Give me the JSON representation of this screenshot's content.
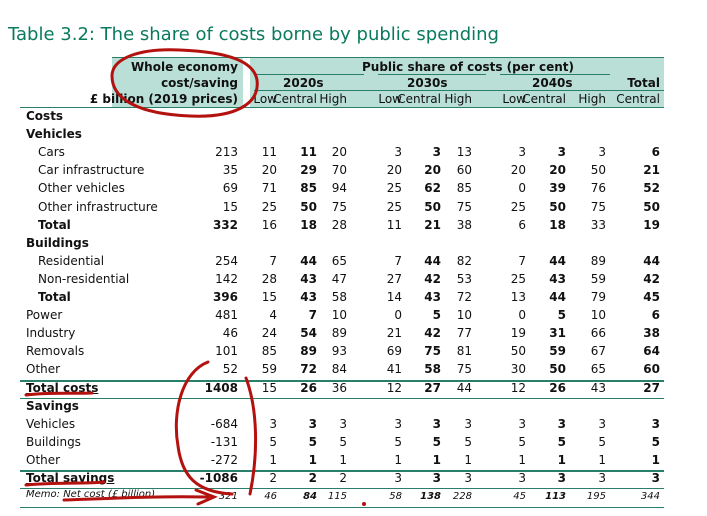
{
  "title": "Table 3.2: The share of costs borne by public spending",
  "header": {
    "whole_economy_line1": "Whole economy",
    "whole_economy_line2": "cost/saving",
    "whole_economy_line3": "£ billion (2019 prices)",
    "public_share": "Public share of costs (per cent)",
    "decades": [
      "2020s",
      "2030s",
      "2040s"
    ],
    "total_label": "Total",
    "sub": [
      "Low",
      "Central",
      "High",
      "Low",
      "Central",
      "High",
      "Low",
      "Central",
      "High"
    ],
    "total_sub": "Central"
  },
  "rows": [
    {
      "label": "Costs",
      "cells": [],
      "style": "bold",
      "indent": 0
    },
    {
      "label": "Vehicles",
      "cells": [],
      "style": "bold",
      "indent": 0
    },
    {
      "label": "Cars",
      "cells": [
        "213",
        "11",
        "11",
        "20",
        "3",
        "3",
        "13",
        "3",
        "3",
        "3",
        "6"
      ],
      "style": "normal",
      "indent": 1
    },
    {
      "label": "Car infrastructure",
      "cells": [
        "35",
        "20",
        "29",
        "70",
        "20",
        "20",
        "60",
        "20",
        "20",
        "50",
        "21"
      ],
      "style": "normal",
      "indent": 1
    },
    {
      "label": "Other vehicles",
      "cells": [
        "69",
        "71",
        "85",
        "94",
        "25",
        "62",
        "85",
        "0",
        "39",
        "76",
        "52"
      ],
      "style": "normal",
      "indent": 1
    },
    {
      "label": "Other infrastructure",
      "cells": [
        "15",
        "25",
        "50",
        "75",
        "25",
        "50",
        "75",
        "25",
        "50",
        "75",
        "50"
      ],
      "style": "normal",
      "indent": 1
    },
    {
      "label": "Total",
      "cells": [
        "332",
        "16",
        "18",
        "28",
        "11",
        "21",
        "38",
        "6",
        "18",
        "33",
        "19"
      ],
      "style": "total",
      "indent": 1
    },
    {
      "label": "Buildings",
      "cells": [],
      "style": "bold",
      "indent": 0
    },
    {
      "label": "Residential",
      "cells": [
        "254",
        "7",
        "44",
        "65",
        "7",
        "44",
        "82",
        "7",
        "44",
        "89",
        "44"
      ],
      "style": "normal",
      "indent": 1
    },
    {
      "label": "Non-residential",
      "cells": [
        "142",
        "28",
        "43",
        "47",
        "27",
        "42",
        "53",
        "25",
        "43",
        "59",
        "42"
      ],
      "style": "normal",
      "indent": 1
    },
    {
      "label": "Total",
      "cells": [
        "396",
        "15",
        "43",
        "58",
        "14",
        "43",
        "72",
        "13",
        "44",
        "79",
        "45"
      ],
      "style": "total",
      "indent": 1
    },
    {
      "label": "Power",
      "cells": [
        "481",
        "4",
        "7",
        "10",
        "0",
        "5",
        "10",
        "0",
        "5",
        "10",
        "6"
      ],
      "style": "normal",
      "indent": 0
    },
    {
      "label": "Industry",
      "cells": [
        "46",
        "24",
        "54",
        "89",
        "21",
        "42",
        "77",
        "19",
        "31",
        "66",
        "38"
      ],
      "style": "normal",
      "indent": 0
    },
    {
      "label": "Removals",
      "cells": [
        "101",
        "85",
        "89",
        "93",
        "69",
        "75",
        "81",
        "50",
        "59",
        "67",
        "64"
      ],
      "style": "normal",
      "indent": 0
    },
    {
      "label": "Other",
      "cells": [
        "52",
        "59",
        "72",
        "84",
        "41",
        "58",
        "75",
        "30",
        "50",
        "65",
        "60"
      ],
      "style": "normal",
      "indent": 0
    },
    {
      "label": "Total costs",
      "cells": [
        "1408",
        "15",
        "26",
        "36",
        "12",
        "27",
        "44",
        "12",
        "26",
        "43",
        "27"
      ],
      "style": "grand",
      "indent": 0
    },
    {
      "label": "Savings",
      "cells": [],
      "style": "bold",
      "indent": 0
    },
    {
      "label": "Vehicles",
      "cells": [
        "-684",
        "3",
        "3",
        "3",
        "3",
        "3",
        "3",
        "3",
        "3",
        "3",
        "3"
      ],
      "style": "normal",
      "indent": 0
    },
    {
      "label": "Buildings",
      "cells": [
        "-131",
        "5",
        "5",
        "5",
        "5",
        "5",
        "5",
        "5",
        "5",
        "5",
        "5"
      ],
      "style": "normal",
      "indent": 0
    },
    {
      "label": "Other",
      "cells": [
        "-272",
        "1",
        "1",
        "1",
        "1",
        "1",
        "1",
        "1",
        "1",
        "1",
        "1"
      ],
      "style": "normal",
      "indent": 0
    },
    {
      "label": "Total savings",
      "cells": [
        "-1086",
        "2",
        "2",
        "2",
        "3",
        "3",
        "3",
        "3",
        "3",
        "3",
        "3"
      ],
      "style": "grand",
      "indent": 0
    },
    {
      "label": "Memo: Net cost (£ billion)",
      "cells": [
        "321",
        "46",
        "84",
        "115",
        "58",
        "138",
        "228",
        "45",
        "113",
        "195",
        "344"
      ],
      "style": "memo",
      "indent": 0
    }
  ]
}
